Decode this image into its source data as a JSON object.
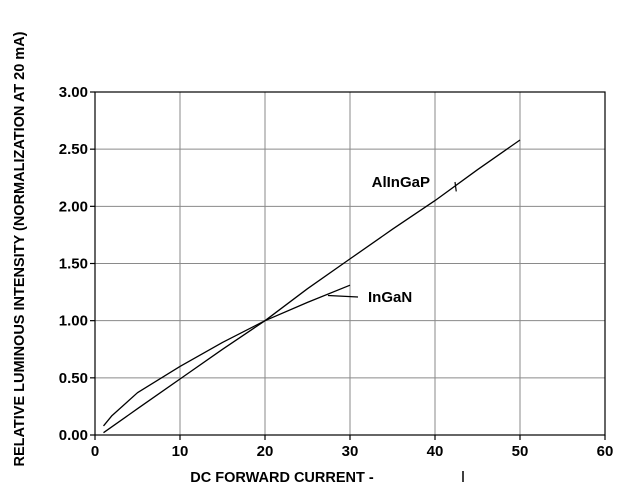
{
  "chart_data": {
    "type": "line",
    "xlabel": "DC FORWARD CURRENT - ",
    "ylabel": "RELATIVE LUMINOUS INTENSITY (NORMALIZATION AT 20 mA)",
    "xlim": [
      0,
      60
    ],
    "ylim": [
      0,
      3
    ],
    "x_ticks": [
      "0",
      "10",
      "20",
      "30",
      "40",
      "50",
      "60"
    ],
    "y_ticks": [
      "0.00",
      "0.50",
      "1.00",
      "1.50",
      "2.00",
      "2.50",
      "3.00"
    ],
    "grid": true,
    "series": [
      {
        "name": "AlInGaP",
        "x": [
          1,
          5,
          10,
          15,
          20,
          25,
          30,
          35,
          40,
          45,
          50
        ],
        "y": [
          0.02,
          0.23,
          0.49,
          0.75,
          1.0,
          1.28,
          1.54,
          1.8,
          2.05,
          2.32,
          2.58
        ]
      },
      {
        "name": "InGaN",
        "x": [
          1,
          2,
          5,
          10,
          15,
          20,
          25,
          30
        ],
        "y": [
          0.08,
          0.17,
          0.37,
          0.6,
          0.81,
          1.0,
          1.16,
          1.31
        ]
      }
    ]
  }
}
